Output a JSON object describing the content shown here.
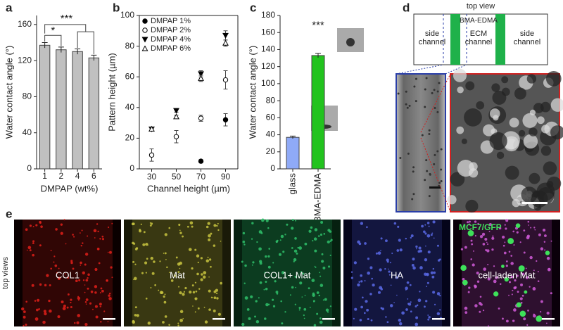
{
  "chart_data": [
    {
      "type": "bar",
      "panel_label": "a",
      "categories": [
        "1",
        "2",
        "4",
        "6"
      ],
      "values": [
        137,
        132,
        130,
        123
      ],
      "errors": [
        3,
        3,
        3,
        3
      ],
      "color": "#c0c0c0",
      "ylim": [
        0,
        170
      ],
      "yticks": [
        0,
        40,
        80,
        120,
        160
      ],
      "ylabel": "Water contact angle (°)",
      "xlabel": "DMPAP (wt%)",
      "annotations": [
        "*",
        "***"
      ]
    },
    {
      "type": "scatter",
      "panel_label": "b",
      "x": [
        30,
        50,
        70,
        90
      ],
      "series": [
        {
          "name": "DMPAP 1%",
          "color": "#000000",
          "marker": "filled-circle",
          "values": [
            null,
            null,
            5,
            32
          ],
          "errors": [
            null,
            null,
            1,
            4
          ]
        },
        {
          "name": "DMPAP 2%",
          "color": "#000000",
          "marker": "open-circle",
          "values": [
            9,
            21,
            33,
            58
          ],
          "errors": [
            4,
            4,
            2,
            6
          ]
        },
        {
          "name": "DMPAP 4%",
          "color": "#000000",
          "marker": "filled-triangle-down",
          "values": [
            26,
            38,
            62,
            87
          ],
          "errors": [
            1,
            1,
            2,
            3
          ]
        },
        {
          "name": "DMPAP 6%",
          "color": "#000000",
          "marker": "open-triangle-up",
          "values": [
            26,
            34,
            59,
            82
          ],
          "errors": [
            1,
            1,
            2,
            2
          ]
        }
      ],
      "xlim": [
        20,
        100
      ],
      "xticks": [
        30,
        50,
        70,
        90
      ],
      "ylim": [
        0,
        100
      ],
      "yticks": [
        0,
        20,
        40,
        60,
        80,
        100
      ],
      "xlabel": "Channel height (µm)",
      "ylabel": "Pattern height (µm)",
      "legend": "upper left"
    },
    {
      "type": "bar",
      "panel_label": "c",
      "categories": [
        "glass",
        "BMA-EDMA"
      ],
      "values": [
        37,
        133
      ],
      "errors": [
        1.5,
        2.5
      ],
      "colors": [
        "#8faaf7",
        "#22c31e"
      ],
      "ylim": [
        0,
        180
      ],
      "yticks": [
        0,
        20,
        40,
        60,
        80,
        100,
        120,
        140,
        160,
        180
      ],
      "ylabel": "Water contact angle (°)",
      "annotations": [
        "***"
      ]
    }
  ],
  "diagram": {
    "panel_label": "d",
    "title": "top view",
    "left": "side channel",
    "strip": "BMA-EDMA",
    "center": "ECM channel",
    "right": "side channel"
  },
  "micrographs": {
    "panel_label": "e",
    "side_label": "top views",
    "panels": [
      {
        "label": "COL1"
      },
      {
        "label": "Mat"
      },
      {
        "label": "COL1+ Mat"
      },
      {
        "label": "HA"
      },
      {
        "label": "cell-laden Mat",
        "tag": "MCF7/GFP"
      }
    ]
  }
}
